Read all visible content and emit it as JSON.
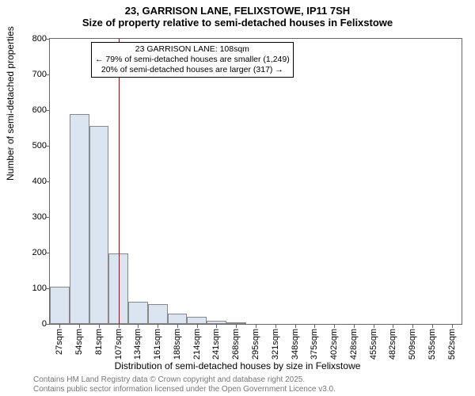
{
  "chart": {
    "type": "histogram",
    "title_main": "23, GARRISON LANE, FELIXSTOWE, IP11 7SH",
    "title_sub": "Size of property relative to semi-detached houses in Felixstowe",
    "title_fontsize": 13,
    "y_axis_label": "Number of semi-detached properties",
    "x_axis_label": "Distribution of semi-detached houses by size in Felixstowe",
    "axis_label_fontsize": 12,
    "background_color": "#ffffff",
    "plot_border_color": "#666666",
    "bar_fill_color": "#dbe5f1",
    "bar_border_color": "#888888",
    "marker_color": "#cc0000",
    "footer_color": "#777777",
    "ylim": [
      0,
      800
    ],
    "y_ticks": [
      0,
      100,
      200,
      300,
      400,
      500,
      600,
      700,
      800
    ],
    "x_categories": [
      "27sqm",
      "54sqm",
      "81sqm",
      "107sqm",
      "134sqm",
      "161sqm",
      "188sqm",
      "214sqm",
      "241sqm",
      "268sqm",
      "295sqm",
      "321sqm",
      "348sqm",
      "375sqm",
      "402sqm",
      "428sqm",
      "455sqm",
      "482sqm",
      "509sqm",
      "535sqm",
      "562sqm"
    ],
    "bar_values": [
      105,
      588,
      555,
      198,
      62,
      55,
      30,
      20,
      8,
      5,
      0,
      0,
      0,
      0,
      0,
      0,
      0,
      0,
      0,
      0,
      0
    ],
    "marker_position_sqm": 108,
    "annotation": {
      "line1": "23 GARRISON LANE: 108sqm",
      "line2": "← 79% of semi-detached houses are smaller (1,249)",
      "line3": "20% of semi-detached houses are larger (317) →"
    },
    "footer_line1": "Contains HM Land Registry data © Crown copyright and database right 2025.",
    "footer_line2": "Contains public sector information licensed under the Open Government Licence v3.0."
  }
}
